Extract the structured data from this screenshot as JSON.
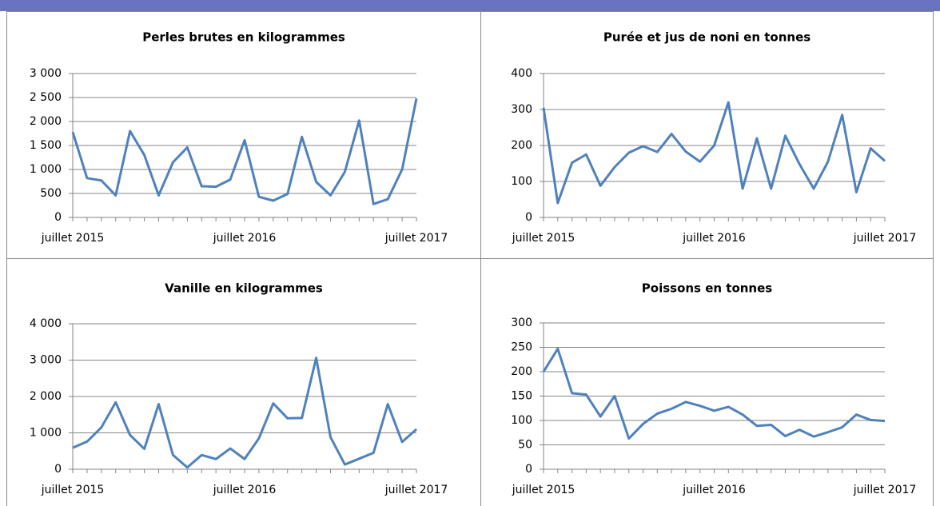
{
  "chart_data": [
    {
      "type": "line",
      "title": "Perles brutes en kilogrammes",
      "categories": [
        "juillet 2015",
        null,
        null,
        null,
        null,
        null,
        null,
        null,
        null,
        null,
        null,
        null,
        "juillet 2016",
        null,
        null,
        null,
        null,
        null,
        null,
        null,
        null,
        null,
        null,
        null,
        "juillet 2017"
      ],
      "series": [
        {
          "color": "#4f81bd",
          "values": [
            1780,
            820,
            770,
            460,
            1800,
            1300,
            460,
            1150,
            1460,
            650,
            640,
            790,
            1610,
            430,
            350,
            490,
            1680,
            740,
            460,
            950,
            2020,
            280,
            380,
            1000,
            2480
          ]
        }
      ],
      "ylim": [
        0,
        3000
      ],
      "yticks": [
        0,
        500,
        {
          "value": 1000,
          "label": "1 000"
        },
        {
          "value": 1500,
          "label": "1 500"
        },
        {
          "value": 2000,
          "label": "2 000"
        },
        {
          "value": 2500,
          "label": "2 500"
        },
        {
          "value": 3000,
          "label": "3 000"
        }
      ],
      "grid": true
    },
    {
      "type": "line",
      "title": "Purée et jus de noni en tonnes",
      "categories": [
        "juillet 2015",
        null,
        null,
        null,
        null,
        null,
        null,
        null,
        null,
        null,
        null,
        null,
        "juillet 2016",
        null,
        null,
        null,
        null,
        null,
        null,
        null,
        null,
        null,
        null,
        null,
        "juillet 2017"
      ],
      "series": [
        {
          "color": "#4f81bd",
          "values": [
            305,
            40,
            152,
            175,
            88,
            140,
            180,
            198,
            182,
            232,
            183,
            155,
            200,
            320,
            80,
            220,
            80,
            227,
            148,
            80,
            155,
            285,
            70,
            192,
            157
          ]
        }
      ],
      "ylim": [
        0,
        400
      ],
      "yticks": [
        0,
        100,
        200,
        300,
        400
      ],
      "grid": true
    },
    {
      "type": "line",
      "title": "Vanille en kilogrammes",
      "categories": [
        "juillet 2015",
        null,
        null,
        null,
        null,
        null,
        null,
        null,
        null,
        null,
        null,
        null,
        "juillet 2016",
        null,
        null,
        null,
        null,
        null,
        null,
        null,
        null,
        null,
        null,
        null,
        "juillet 2017"
      ],
      "series": [
        {
          "color": "#4f81bd",
          "values": [
            590,
            760,
            1150,
            1840,
            940,
            560,
            1790,
            390,
            50,
            390,
            280,
            570,
            280,
            850,
            1810,
            1400,
            1410,
            3060,
            880,
            130,
            290,
            450,
            1790,
            750,
            1100
          ]
        }
      ],
      "ylim": [
        0,
        4000
      ],
      "yticks": [
        0,
        {
          "value": 1000,
          "label": "1 000"
        },
        {
          "value": 2000,
          "label": "2 000"
        },
        {
          "value": 3000,
          "label": "3 000"
        },
        {
          "value": 4000,
          "label": "4 000"
        }
      ],
      "grid": true
    },
    {
      "type": "line",
      "title": "Poissons en tonnes",
      "categories": [
        "juillet 2015",
        null,
        null,
        null,
        null,
        null,
        null,
        null,
        null,
        null,
        null,
        null,
        "juillet 2016",
        null,
        null,
        null,
        null,
        null,
        null,
        null,
        null,
        null,
        null,
        null,
        "juillet 2017"
      ],
      "series": [
        {
          "color": "#4f81bd",
          "values": [
            200,
            247,
            156,
            153,
            108,
            150,
            63,
            93,
            114,
            124,
            138,
            130,
            120,
            128,
            112,
            89,
            91,
            68,
            81,
            67,
            76,
            86,
            112,
            101,
            99
          ]
        }
      ],
      "ylim": [
        0,
        300
      ],
      "yticks": [
        0,
        50,
        100,
        150,
        200,
        250,
        300
      ],
      "grid": true
    }
  ]
}
